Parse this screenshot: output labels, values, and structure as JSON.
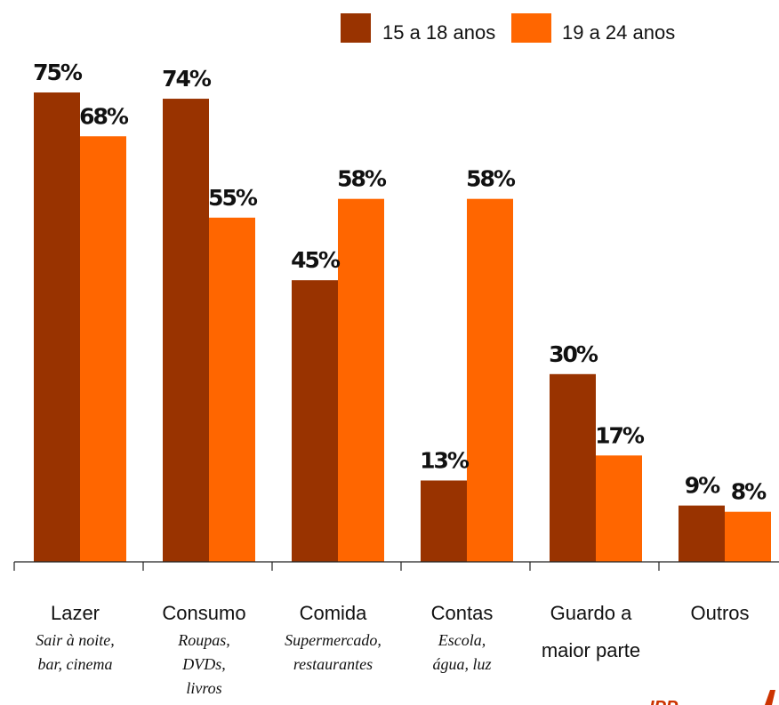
{
  "chart_data": {
    "type": "bar",
    "categories": [
      "Lazer",
      "Consumo",
      "Comida",
      "Contas",
      "Guardo a maior parte",
      "Outros"
    ],
    "category_labels": [
      {
        "lines": [
          "Lazer"
        ],
        "sub": [
          "Sair à noite,",
          "bar, cinema"
        ]
      },
      {
        "lines": [
          "Consumo"
        ],
        "sub": [
          "Roupas,",
          "DVDs,",
          "livros"
        ]
      },
      {
        "lines": [
          "Comida"
        ],
        "sub": [
          "Supermercado,",
          "restaurantes"
        ]
      },
      {
        "lines": [
          "Contas"
        ],
        "sub": [
          "Escola,",
          "água, luz"
        ]
      },
      {
        "lines": [
          "Guardo a",
          "maior parte"
        ],
        "sub": []
      },
      {
        "lines": [
          "Outros"
        ],
        "sub": []
      }
    ],
    "series": [
      {
        "name": "15 a 18 anos",
        "values": [
          75,
          74,
          45,
          13,
          30,
          9
        ],
        "labels": [
          "75%",
          "74%",
          "45%",
          "13%",
          "30%",
          "9%"
        ],
        "color": "#993300"
      },
      {
        "name": "19 a 24 anos",
        "values": [
          68,
          55,
          58,
          58,
          17,
          8
        ],
        "labels": [
          "68%",
          "55%",
          "58%",
          "58%",
          "17%",
          "8%"
        ],
        "color": "#ff6600"
      }
    ],
    "ylim": [
      0,
      75
    ],
    "grid": false,
    "legend_position": "top-right",
    "source_fragment": "IPP",
    "source_color": "#cc3300"
  }
}
